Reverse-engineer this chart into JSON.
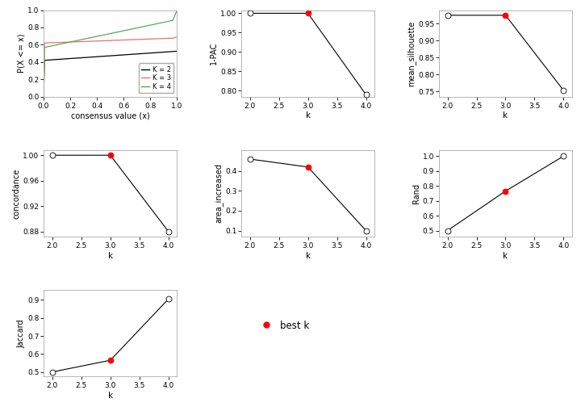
{
  "k_values": [
    2,
    3,
    4
  ],
  "pac_1": [
    1.0,
    1.0,
    0.79
  ],
  "mean_sil": [
    0.975,
    0.975,
    0.753
  ],
  "concordance": [
    1.0,
    1.0,
    0.88
  ],
  "area_increased": [
    0.46,
    0.42,
    0.1
  ],
  "rand": [
    0.5,
    0.765,
    1.0
  ],
  "jaccard": [
    0.5,
    0.565,
    0.905
  ],
  "best_k": 3,
  "cdf_colors": [
    "black",
    "#e87070",
    "#55aa55"
  ],
  "k_labels": [
    "K = 2",
    "K = 3",
    "K = 4"
  ],
  "fig_bg": "white",
  "ax_bg": "white",
  "spine_color": "#aaaaaa",
  "line_color": "black",
  "dot_open_color": "white",
  "dot_best_color": "red",
  "dot_edge_color": "black",
  "dot_size": 25,
  "tick_fontsize": 6.5,
  "label_fontsize": 7.5,
  "legend_fontsize": 6
}
